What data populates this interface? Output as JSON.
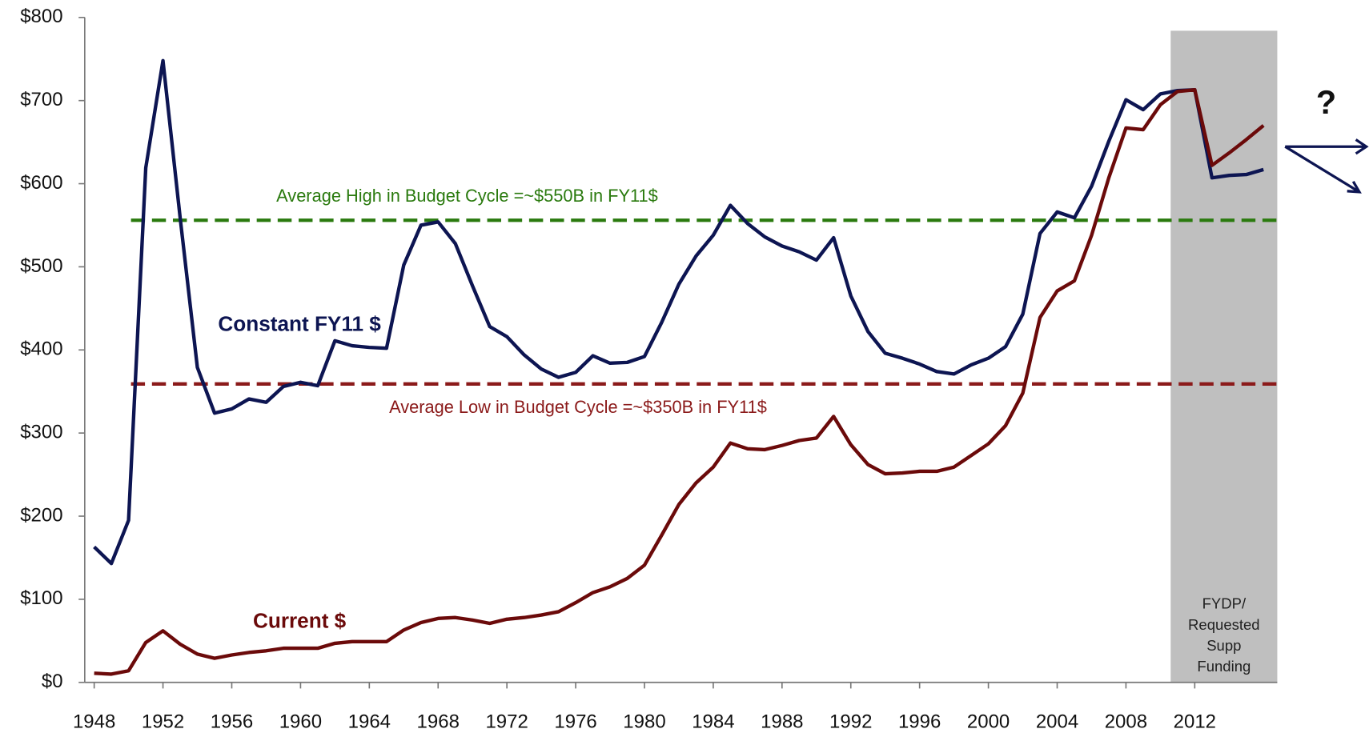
{
  "chart_data": {
    "type": "line",
    "x": [
      1948,
      1949,
      1950,
      1951,
      1952,
      1953,
      1954,
      1955,
      1956,
      1957,
      1958,
      1959,
      1960,
      1961,
      1962,
      1963,
      1964,
      1965,
      1966,
      1967,
      1968,
      1969,
      1970,
      1971,
      1972,
      1973,
      1974,
      1975,
      1976,
      1977,
      1978,
      1979,
      1980,
      1981,
      1982,
      1983,
      1984,
      1985,
      1986,
      1987,
      1988,
      1989,
      1990,
      1991,
      1992,
      1993,
      1994,
      1995,
      1996,
      1997,
      1998,
      1999,
      2000,
      2001,
      2002,
      2003,
      2004,
      2005,
      2006,
      2007,
      2008,
      2009,
      2010,
      2011,
      2012,
      2013,
      2014,
      2015,
      2016
    ],
    "series": [
      {
        "name": "Constant FY11 $",
        "color": "#0d1552",
        "values": [
          163,
          143,
          195,
          619,
          748,
          559,
          379,
          324,
          329,
          341,
          337,
          356,
          361,
          357,
          411,
          405,
          403,
          402,
          502,
          550,
          554,
          528,
          477,
          428,
          416,
          394,
          377,
          367,
          373,
          393,
          384,
          385,
          392,
          433,
          479,
          513,
          538,
          574,
          552,
          536,
          525,
          518,
          508,
          535,
          465,
          422,
          396,
          390,
          383,
          374,
          371,
          382,
          390,
          404,
          443,
          540,
          566,
          559,
          597,
          651,
          701,
          689,
          708,
          712,
          713,
          607,
          610,
          611,
          617
        ]
      },
      {
        "name": "Current $",
        "color": "#6b0a0a",
        "values": [
          11,
          10,
          14,
          48,
          62,
          46,
          34,
          29,
          33,
          36,
          38,
          41,
          41,
          41,
          47,
          49,
          49,
          49,
          63,
          72,
          77,
          78,
          75,
          71,
          76,
          78,
          81,
          85,
          96,
          108,
          115,
          125,
          141,
          177,
          214,
          240,
          259,
          288,
          281,
          280,
          285,
          291,
          294,
          320,
          286,
          262,
          251,
          252,
          254,
          254,
          259,
          273,
          287,
          309,
          348,
          439,
          471,
          483,
          538,
          607,
          667,
          665,
          695,
          711,
          713,
          622,
          637,
          653,
          670
        ]
      }
    ],
    "xlim": [
      1947.45,
      2016.8
    ],
    "xticks": [
      1948,
      1952,
      1956,
      1960,
      1964,
      1968,
      1972,
      1976,
      1980,
      1984,
      1988,
      1992,
      1996,
      2000,
      2004,
      2008,
      2012
    ],
    "ylim": [
      0,
      800
    ],
    "yticks": [
      {
        "value": 0,
        "label": "$0"
      },
      {
        "value": 100,
        "label": "$100"
      },
      {
        "value": 200,
        "label": "$200"
      },
      {
        "value": 300,
        "label": "$300"
      },
      {
        "value": 400,
        "label": "$400"
      },
      {
        "value": 500,
        "label": "$500"
      },
      {
        "value": 600,
        "label": "$600"
      },
      {
        "value": 700,
        "label": "$700"
      },
      {
        "value": 800,
        "label": "$800"
      }
    ],
    "reference_lines": [
      {
        "value": 556,
        "color": "#2a7a0e",
        "label": "Average High in Budget Cycle =~$550B in FY11$"
      },
      {
        "value": 359,
        "color": "#8b1a1a",
        "label": "Average Low in Budget Cycle =~$350B in FY11$"
      }
    ],
    "shaded_region": {
      "x": [
        2010.6,
        2016.8
      ],
      "y": [
        0,
        784
      ],
      "color": "#bfbfbf",
      "lines": [
        "FYDP/",
        "Requested",
        "Supp",
        "Funding"
      ]
    },
    "annotation": "?"
  }
}
